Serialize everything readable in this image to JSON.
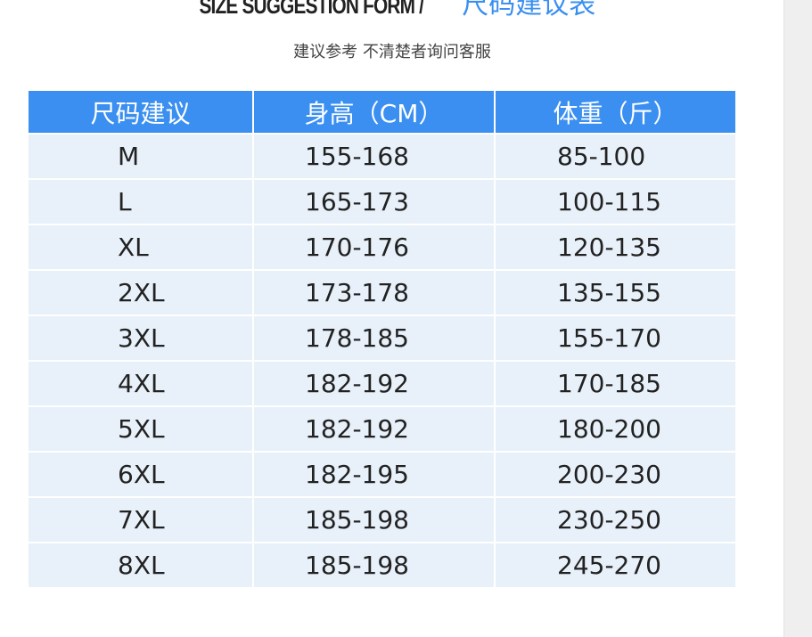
{
  "header": {
    "title_en": "SIZE SUGGESTION FORM /",
    "title_cn": "尺码建议表",
    "subtitle": "建议参考 不清楚者询问客服"
  },
  "table": {
    "columns": [
      "尺码建议",
      "身高（CM）",
      "体重（斤）"
    ],
    "rows": [
      [
        "M",
        "155-168",
        "85-100"
      ],
      [
        "L",
        "165-173",
        "100-115"
      ],
      [
        "XL",
        "170-176",
        "120-135"
      ],
      [
        "2XL",
        "173-178",
        "135-155"
      ],
      [
        "3XL",
        "178-185",
        "155-170"
      ],
      [
        "4XL",
        "182-192",
        "170-185"
      ],
      [
        "5XL",
        "182-192",
        "180-200"
      ],
      [
        "6XL",
        "182-195",
        "200-230"
      ],
      [
        "7XL",
        "185-198",
        "230-250"
      ],
      [
        "8XL",
        "185-198",
        "245-270"
      ]
    ]
  },
  "colors": {
    "header_bg": "#3a8ff0",
    "cell_bg": "#e8f1fa",
    "title_accent": "#3a8ff0"
  }
}
